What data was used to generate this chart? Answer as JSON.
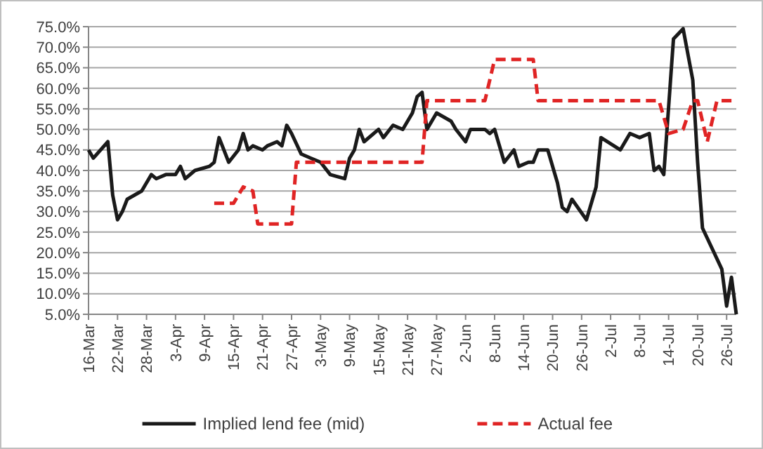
{
  "chart_data": {
    "type": "line",
    "grid": "y",
    "legend": "bottom",
    "xlim": [
      "--03-16",
      "--07-28"
    ],
    "xticks": [
      {
        "value": "--03-16",
        "label": "16-Mar"
      },
      {
        "value": "--03-22",
        "label": "22-Mar"
      },
      {
        "value": "--03-28",
        "label": "28-Mar"
      },
      {
        "value": "--04-03",
        "label": "3-Apr"
      },
      {
        "value": "--04-09",
        "label": "9-Apr"
      },
      {
        "value": "--04-15",
        "label": "15-Apr"
      },
      {
        "value": "--04-21",
        "label": "21-Apr"
      },
      {
        "value": "--04-27",
        "label": "27-Apr"
      },
      {
        "value": "--05-03",
        "label": "3-May"
      },
      {
        "value": "--05-09",
        "label": "9-May"
      },
      {
        "value": "--05-15",
        "label": "15-May"
      },
      {
        "value": "--05-21",
        "label": "21-May"
      },
      {
        "value": "--05-27",
        "label": "27-May"
      },
      {
        "value": "--06-02",
        "label": "2-Jun"
      },
      {
        "value": "--06-08",
        "label": "8-Jun"
      },
      {
        "value": "--06-14",
        "label": "14-Jun"
      },
      {
        "value": "--06-20",
        "label": "20-Jun"
      },
      {
        "value": "--06-26",
        "label": "26-Jun"
      },
      {
        "value": "--07-02",
        "label": "2-Jul"
      },
      {
        "value": "--07-08",
        "label": "8-Jul"
      },
      {
        "value": "--07-14",
        "label": "14-Jul"
      },
      {
        "value": "--07-20",
        "label": "20-Jul"
      },
      {
        "value": "--07-26",
        "label": "26-Jul"
      }
    ],
    "ylim": [
      5,
      75
    ],
    "yticks": [
      {
        "value": 5,
        "label": "5.0%"
      },
      {
        "value": 10,
        "label": "10.0%"
      },
      {
        "value": 15,
        "label": "15.0%"
      },
      {
        "value": 20,
        "label": "20.0%"
      },
      {
        "value": 25,
        "label": "25.0%"
      },
      {
        "value": 30,
        "label": "30.0%"
      },
      {
        "value": 35,
        "label": "35.0%"
      },
      {
        "value": 40,
        "label": "40.0%"
      },
      {
        "value": 45,
        "label": "45.0%"
      },
      {
        "value": 50,
        "label": "50.0%"
      },
      {
        "value": 55,
        "label": "55.0%"
      },
      {
        "value": 60,
        "label": "60.0%"
      },
      {
        "value": 65,
        "label": "65.0%"
      },
      {
        "value": 70,
        "label": "70.0%"
      },
      {
        "value": 75,
        "label": "75.0%"
      }
    ],
    "series": [
      {
        "name": "Implied lend fee (mid)",
        "color": "#1a1a1a",
        "line_style": "solid",
        "x": [
          "--03-16",
          "--03-17",
          "--03-20",
          "--03-21",
          "--03-22",
          "--03-23",
          "--03-24",
          "--03-27",
          "--03-28",
          "--03-29",
          "--03-30",
          "--04-01",
          "--04-03",
          "--04-04",
          "--04-05",
          "--04-07",
          "--04-10",
          "--04-11",
          "--04-12",
          "--04-14",
          "--04-16",
          "--04-17",
          "--04-18",
          "--04-19",
          "--04-21",
          "--04-22",
          "--04-24",
          "--04-25",
          "--04-26",
          "--04-27",
          "--04-29",
          "--05-01",
          "--05-03",
          "--05-05",
          "--05-08",
          "--05-09",
          "--05-10",
          "--05-11",
          "--05-12",
          "--05-15",
          "--05-16",
          "--05-18",
          "--05-20",
          "--05-22",
          "--05-23",
          "--05-24",
          "--05-25",
          "--05-27",
          "--05-30",
          "--05-31",
          "--06-02",
          "--06-03",
          "--06-06",
          "--06-07",
          "--06-08",
          "--06-10",
          "--06-12",
          "--06-13",
          "--06-15",
          "--06-16",
          "--06-17",
          "--06-19",
          "--06-21",
          "--06-22",
          "--06-23",
          "--06-24",
          "--06-27",
          "--06-29",
          "--06-30",
          "--07-04",
          "--07-06",
          "--07-08",
          "--07-10",
          "--07-11",
          "--07-12",
          "--07-13",
          "--07-15",
          "--07-17",
          "--07-19",
          "--07-20",
          "--07-21",
          "--07-25",
          "--07-26",
          "--07-27",
          "--07-28"
        ],
        "values": [
          45,
          43,
          47,
          34,
          28,
          30,
          33,
          35,
          37,
          39,
          38,
          39,
          39,
          41,
          38,
          40,
          41,
          42,
          48,
          42,
          45,
          49,
          45,
          46,
          45,
          46,
          47,
          46,
          51,
          49,
          44,
          43,
          42,
          39,
          38,
          43,
          45,
          50,
          47,
          50,
          48,
          51,
          50,
          54,
          58,
          59,
          50,
          54,
          52,
          50,
          47,
          50,
          50,
          49,
          50,
          42,
          45,
          41,
          42,
          42,
          45,
          45,
          37,
          31,
          30,
          33,
          28,
          36,
          48,
          45,
          49,
          48,
          49,
          40,
          41,
          39,
          72,
          74.5,
          62,
          42,
          26,
          16,
          7,
          14,
          5
        ]
      },
      {
        "name": "Actual fee",
        "color": "#e02424",
        "line_style": "dashed",
        "x": [
          "--04-11",
          "--04-15",
          "--04-17",
          "--04-19",
          "--04-20",
          "--04-27",
          "--04-28",
          "--05-24",
          "--05-25",
          "--06-06",
          "--06-08",
          "--06-16",
          "--06-17",
          "--07-12",
          "--07-14",
          "--07-17",
          "--07-19",
          "--07-20",
          "--07-22",
          "--07-24",
          "--07-27"
        ],
        "values": [
          32,
          32,
          36,
          35,
          27,
          27,
          42,
          42,
          57,
          57,
          67,
          67,
          57,
          57,
          49,
          50,
          57,
          57,
          47,
          57,
          57
        ]
      }
    ]
  }
}
